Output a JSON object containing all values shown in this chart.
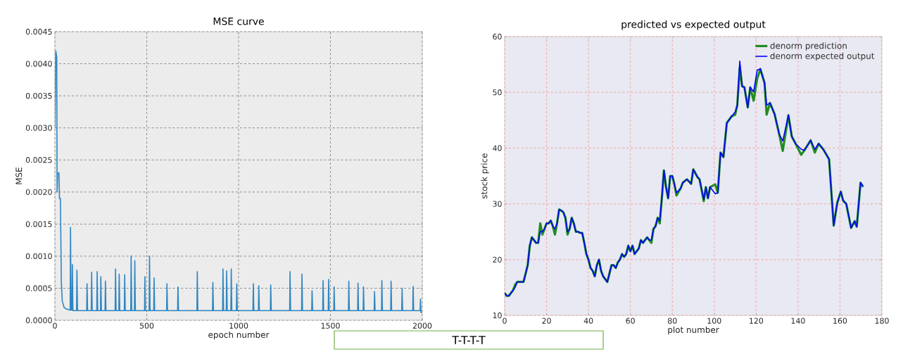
{
  "chart_data": [
    {
      "type": "line",
      "title": "MSE curve",
      "xlabel": "epoch number",
      "ylabel": "MSE",
      "color": "#2e86c1",
      "x": [
        0,
        5,
        10,
        12,
        15,
        22,
        25,
        30,
        35,
        40,
        50,
        60,
        80,
        83,
        85,
        88,
        93,
        95,
        98,
        118,
        120,
        123,
        173,
        175,
        178,
        198,
        200,
        203,
        228,
        230,
        233,
        248,
        250,
        253,
        273,
        275,
        278,
        328,
        330,
        333,
        348,
        350,
        353,
        378,
        380,
        383,
        413,
        415,
        418,
        433,
        435,
        438,
        488,
        490,
        493,
        513,
        515,
        518,
        538,
        540,
        543,
        608,
        610,
        613,
        668,
        670,
        673,
        773,
        775,
        778,
        858,
        860,
        863,
        913,
        915,
        918,
        933,
        935,
        938,
        958,
        960,
        963,
        988,
        990,
        993,
        1078,
        1080,
        1083,
        1108,
        1110,
        1113,
        1173,
        1175,
        1178,
        1278,
        1280,
        1283,
        1343,
        1345,
        1348,
        1398,
        1400,
        1403,
        1458,
        1460,
        1463,
        1488,
        1490,
        1493,
        1518,
        1520,
        1523,
        1598,
        1600,
        1603,
        1648,
        1650,
        1653,
        1678,
        1680,
        1683,
        1738,
        1740,
        1743,
        1778,
        1780,
        1783,
        1828,
        1830,
        1833,
        1888,
        1890,
        1893,
        1948,
        1950,
        1953,
        1988,
        1990,
        1993,
        2000
      ],
      "values": [
        0.003,
        0.0042,
        0.0041,
        0.002,
        0.0023,
        0.0023,
        0.0019,
        0.0019,
        0.0006,
        0.0003,
        0.0002,
        0.00018,
        0.00016,
        0.00016,
        0.00145,
        0.00016,
        0.00016,
        0.00087,
        0.00015,
        0.00015,
        0.00078,
        0.00015,
        0.00015,
        0.00057,
        0.00015,
        0.00015,
        0.00075,
        0.00015,
        0.00015,
        0.00076,
        0.00015,
        0.00015,
        0.00068,
        0.00015,
        0.00015,
        0.00061,
        0.00015,
        0.00015,
        0.0008,
        0.00015,
        0.00015,
        0.00072,
        0.00015,
        0.00015,
        0.00071,
        0.00015,
        0.00015,
        0.001,
        0.00015,
        0.00015,
        0.00093,
        0.00015,
        0.00015,
        0.00068,
        0.00015,
        0.00015,
        0.001,
        0.00015,
        0.00015,
        0.00066,
        0.00015,
        0.00015,
        0.00057,
        0.00015,
        0.00015,
        0.00052,
        0.00015,
        0.00015,
        0.00076,
        0.00015,
        0.00015,
        0.00059,
        0.00015,
        0.00015,
        0.0008,
        0.00015,
        0.00015,
        0.00077,
        0.00015,
        0.00015,
        0.0008,
        0.00015,
        0.00015,
        0.00057,
        0.00015,
        0.00015,
        0.00057,
        0.00015,
        0.00015,
        0.00054,
        0.00015,
        0.00015,
        0.00055,
        0.00015,
        0.00015,
        0.00076,
        0.00015,
        0.00015,
        0.00072,
        0.00015,
        0.00015,
        0.00046,
        0.00015,
        0.00015,
        0.00062,
        0.00015,
        0.00015,
        0.00064,
        0.00015,
        0.00015,
        0.00052,
        0.00015,
        0.00015,
        0.00061,
        0.00015,
        0.00015,
        0.00058,
        0.00015,
        0.00015,
        0.00052,
        0.00015,
        0.00015,
        0.00045,
        0.00015,
        0.00015,
        0.00062,
        0.00015,
        0.00015,
        0.00061,
        0.00015,
        0.00015,
        0.0005,
        0.00015,
        0.00015,
        0.00053,
        0.00015,
        0.00015,
        0.00033,
        0.00012,
        0.00013
      ],
      "xlim": [
        0,
        2000
      ],
      "xticks": [
        0,
        500,
        1000,
        1500,
        2000
      ],
      "ylim": [
        0,
        0.0045
      ],
      "yticks": [
        {
          "value": 0,
          "label": "0.0000"
        },
        {
          "value": 0.0005,
          "label": "0.0005"
        },
        {
          "value": 0.001,
          "label": "0.0010"
        },
        {
          "value": 0.0015,
          "label": "0.0015"
        },
        {
          "value": 0.002,
          "label": "0.0020"
        },
        {
          "value": 0.0025,
          "label": "0.0025"
        },
        {
          "value": 0.003,
          "label": "0.0030"
        },
        {
          "value": 0.0035,
          "label": "0.0035"
        },
        {
          "value": 0.004,
          "label": "0.0040"
        },
        {
          "value": 0.0045,
          "label": "0.0045"
        }
      ],
      "grid": true
    },
    {
      "type": "line",
      "title": "predicted vs expected output",
      "xlabel": "plot number",
      "ylabel": "stock price",
      "series": [
        {
          "name": "denorm prediction",
          "color": "#228b22",
          "x": [
            0,
            1,
            2,
            4,
            5,
            6,
            8,
            9,
            10,
            11,
            12,
            13,
            14,
            15,
            16,
            17,
            18,
            19,
            20,
            21,
            22,
            23,
            24,
            25,
            26,
            27,
            28,
            29,
            30,
            31,
            32,
            33,
            34,
            35,
            36,
            37,
            38,
            39,
            40,
            41,
            42,
            43,
            44,
            45,
            46,
            47,
            48,
            49,
            50,
            51,
            52,
            53,
            54,
            55,
            56,
            57,
            58,
            59,
            60,
            61,
            62,
            63,
            64,
            65,
            66,
            67,
            68,
            69,
            70,
            71,
            72,
            73,
            74,
            75,
            76,
            77,
            78,
            79,
            80,
            81,
            82,
            84,
            85,
            87,
            89,
            90,
            92,
            93,
            95,
            96,
            97,
            98,
            100.5,
            101.7,
            103,
            104.4,
            106,
            108.3,
            110,
            111,
            112.2,
            113.3,
            114.4,
            116,
            117.2,
            118.8,
            120.5,
            122,
            124,
            125,
            126.6,
            128.8,
            131,
            132.7,
            135.4,
            137,
            138.8,
            141.5,
            143,
            146,
            148,
            149.8,
            152,
            154.8,
            157,
            158.7,
            160.4,
            161.5,
            163,
            165.3,
            167,
            168,
            169.8,
            171
          ],
          "values": [
            14,
            13.5,
            13.5,
            14.5,
            15.5,
            16,
            16,
            16,
            17.5,
            19,
            22.5,
            24,
            23.5,
            23,
            23,
            26.5,
            24.5,
            25.5,
            26.5,
            26.5,
            27,
            26,
            24.5,
            26.5,
            29,
            28.8,
            28.5,
            27.5,
            24.5,
            25.5,
            27.5,
            26.5,
            25,
            25,
            24.8,
            24.8,
            23,
            21,
            20,
            18.5,
            18,
            17,
            19,
            20,
            18,
            17,
            16.5,
            16,
            17.5,
            19,
            19,
            18.5,
            19.5,
            20,
            21,
            20.5,
            21,
            22.5,
            21.5,
            22.5,
            21,
            21.5,
            22,
            23.5,
            23,
            23.5,
            24,
            23.5,
            23,
            25.5,
            26,
            27.5,
            26.5,
            31,
            36,
            33,
            31,
            35,
            35,
            33.5,
            31.5,
            32.8,
            33.8,
            34.4,
            33.6,
            36.2,
            34.8,
            34.4,
            30.5,
            33,
            31,
            33,
            33.5,
            32,
            39.2,
            38.4,
            44.5,
            45.7,
            46,
            47.7,
            54.5,
            51.1,
            50.9,
            47.3,
            50.9,
            48.5,
            52.5,
            54.2,
            51.7,
            46,
            48.1,
            46.1,
            42.5,
            39.5,
            45.9,
            42.1,
            40.8,
            38.8,
            39.6,
            41.4,
            39.2,
            40.8,
            39.8,
            38,
            26.1,
            30.2,
            32.2,
            30.6,
            30,
            25.7,
            26.9,
            25.9,
            33.8,
            33
          ]
        },
        {
          "name": "denorm expected output",
          "color": "#0000ff",
          "x": [
            0,
            1,
            2,
            4,
            5,
            6,
            8,
            9,
            10,
            11,
            12,
            13,
            14,
            15,
            16,
            17,
            18,
            19,
            20,
            21,
            22,
            23,
            24,
            25,
            26,
            27,
            28,
            29,
            30,
            31,
            32,
            33,
            34,
            35,
            36,
            37,
            38,
            39,
            40,
            41,
            42,
            43,
            44,
            45,
            46,
            47,
            48,
            49,
            50,
            51,
            52,
            53,
            54,
            55,
            56,
            57,
            58,
            59,
            60,
            61,
            62,
            63,
            64,
            65,
            66,
            67,
            68,
            69,
            70,
            71,
            72,
            73,
            74,
            75,
            76,
            77,
            78,
            79,
            80,
            81,
            82,
            84,
            85,
            87,
            89,
            90,
            92,
            93,
            95,
            96,
            97,
            98,
            100.5,
            101.7,
            103,
            104.4,
            106,
            108.3,
            110,
            111,
            112.2,
            113.3,
            114.4,
            116,
            117.2,
            118.8,
            120.5,
            122,
            124,
            125,
            126.6,
            128.8,
            131,
            132.7,
            135.4,
            137,
            138.8,
            141.5,
            143,
            146,
            148,
            149.8,
            152,
            154.8,
            157,
            158.7,
            160.4,
            161.5,
            163,
            165.3,
            167,
            168,
            169.8,
            171
          ],
          "values": [
            14,
            13.5,
            13.5,
            14.5,
            15,
            16,
            16,
            16,
            17.5,
            19,
            22.5,
            24,
            23.5,
            23,
            23,
            25,
            25,
            25.5,
            26.5,
            26.5,
            27,
            26,
            25.5,
            26.5,
            29,
            28.8,
            28.5,
            27.5,
            25,
            25.5,
            27.5,
            26.5,
            25,
            25,
            24.8,
            24.8,
            23,
            21,
            20,
            18.5,
            18,
            17,
            19,
            20,
            18,
            17,
            16.5,
            16,
            17.5,
            19,
            19,
            18.5,
            19.5,
            20,
            21,
            20.5,
            21,
            22.5,
            21.5,
            22.5,
            21,
            21.5,
            22,
            23.5,
            23,
            23.5,
            24,
            23.5,
            23.5,
            25.5,
            26,
            27.5,
            27,
            31,
            36,
            33,
            31,
            35,
            35,
            33.5,
            32,
            32.8,
            33.8,
            34.4,
            33.6,
            36.2,
            34.8,
            34.4,
            30.8,
            33,
            31,
            33,
            31.8,
            32,
            39.2,
            38.4,
            44.5,
            45.7,
            46.5,
            47.7,
            55.6,
            51.1,
            50.9,
            47.3,
            50.9,
            50.1,
            54,
            54.2,
            51.7,
            47.7,
            48.1,
            46.1,
            42.5,
            41.3,
            45.9,
            42.1,
            40.8,
            39.8,
            39.6,
            41.4,
            39.8,
            40.8,
            39.8,
            38,
            26.1,
            30.2,
            32.2,
            30.6,
            30,
            25.7,
            26.9,
            25.9,
            33.8,
            33.2
          ]
        }
      ],
      "xlim": [
        0,
        180
      ],
      "xticks": [
        0,
        20,
        40,
        60,
        80,
        100,
        120,
        140,
        160,
        180
      ],
      "ylim": [
        10,
        60
      ],
      "yticks": [
        10,
        20,
        30,
        40,
        50,
        60
      ],
      "grid": true,
      "legend": "top right",
      "annotations": [
        "T-T-T-T"
      ]
    }
  ]
}
